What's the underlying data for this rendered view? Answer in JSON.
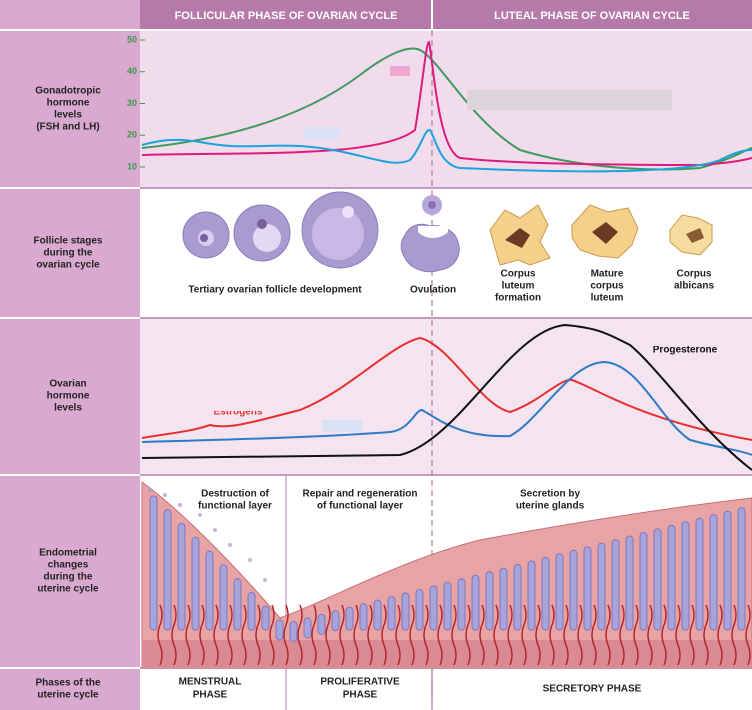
{
  "header": {
    "follicular": "FOLLICULAR PHASE OF OVARIAN CYCLE",
    "luteal": "LUTEAL PHASE OF OVARIAN CYCLE"
  },
  "rows": [
    {
      "lines": [
        "Gonadotropic",
        "hormone",
        "levels",
        "(FSH and LH)"
      ]
    },
    {
      "lines": [
        "Follicle stages",
        "during the",
        "ovarian cycle"
      ]
    },
    {
      "lines": [
        "Ovarian",
        "hormone",
        "levels"
      ]
    },
    {
      "lines": [
        "Endometrial",
        "changes",
        "during the",
        "uterine cycle"
      ]
    },
    {
      "lines": [
        "Phases of the",
        "uterine cycle"
      ]
    }
  ],
  "gonadotropic": {
    "yticks": [
      10,
      20,
      30,
      40,
      50
    ]
  },
  "follicle_labels": [
    {
      "lines": [
        "Tertiary ovarian follicle development"
      ]
    },
    {
      "lines": [
        "Ovulation"
      ]
    },
    {
      "lines": [
        "Corpus",
        "luteum",
        "formation"
      ]
    },
    {
      "lines": [
        "Mature",
        "corpus",
        "luteum"
      ]
    },
    {
      "lines": [
        "Corpus",
        "albicans"
      ]
    }
  ],
  "ovarian_labels": {
    "estrogens": "Estrogens",
    "progesterone": "Progesterone"
  },
  "endometrium_labels": [
    {
      "lines": [
        "Destruction of",
        "functional layer"
      ]
    },
    {
      "lines": [
        "Repair and regeneration",
        "of functional layer"
      ]
    },
    {
      "lines": [
        "Secretion by",
        "uterine glands"
      ]
    }
  ],
  "phases": [
    {
      "lines": [
        "MENSTRUAL",
        "PHASE"
      ]
    },
    {
      "lines": [
        "PROLIFERATIVE",
        "PHASE"
      ]
    },
    {
      "lines": [
        "SECRETORY PHASE"
      ]
    }
  ]
}
